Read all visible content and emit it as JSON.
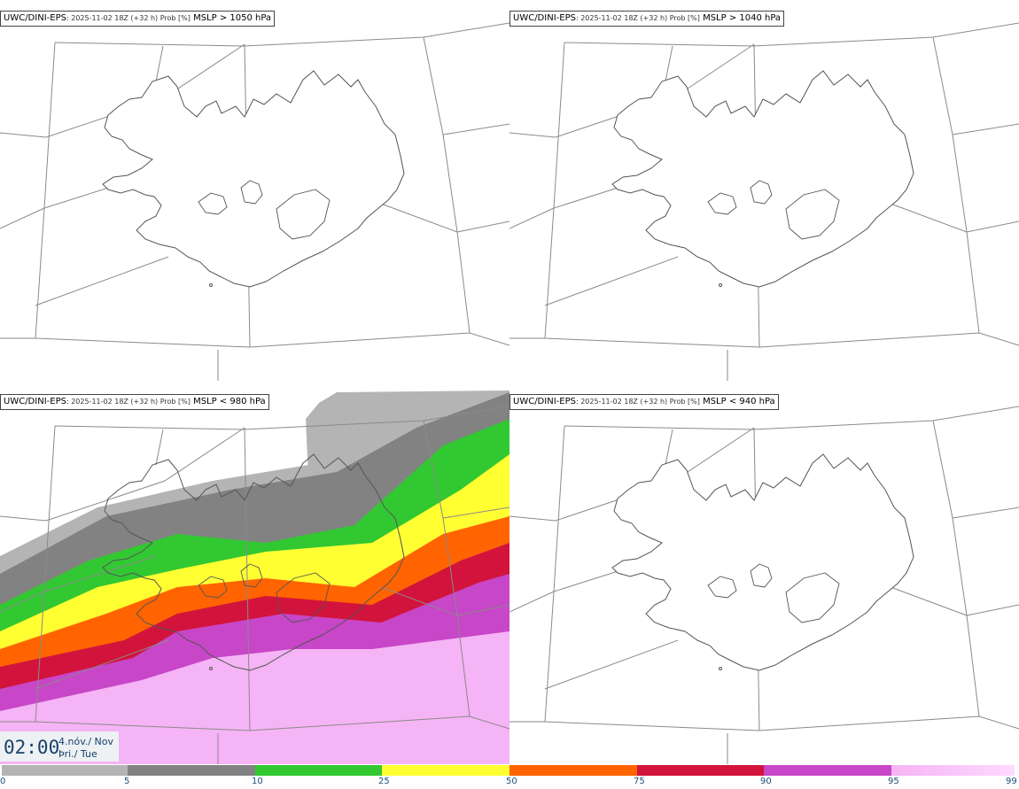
{
  "panels": [
    {
      "source": "UWC/DINI-EPS",
      "meta": ": 2025-11-02 18Z (+32 h) Prob [%]",
      "variable": "MSLP > 1050 hPa",
      "filled": false
    },
    {
      "source": "UWC/DINI-EPS",
      "meta": ": 2025-11-02 18Z (+32 h) Prob [%]",
      "variable": "MSLP > 1040 hPa",
      "filled": false
    },
    {
      "source": "UWC/DINI-EPS",
      "meta": ": 2025-11-02 18Z (+32 h) Prob [%]",
      "variable": "MSLP < 980 hPa",
      "filled": true
    },
    {
      "source": "UWC/DINI-EPS",
      "meta": ": 2025-11-02 18Z (+32 h) Prob [%]",
      "variable": "MSLP < 940 hPa",
      "filled": false
    }
  ],
  "valid_time": {
    "time": "02:00",
    "date": "4.nóv./ Nov",
    "weekday": "Þri./ Tue"
  },
  "colorbar": {
    "ticks": [
      "0",
      "5",
      "10",
      "25",
      "50",
      "75",
      "90",
      "95",
      "99"
    ],
    "colors": [
      "#ffffff",
      "#b4b4b4",
      "#828282",
      "#32c832",
      "#ffff32",
      "#ff6400",
      "#d2143c",
      "#c846c8",
      "#f5b4f5"
    ]
  }
}
